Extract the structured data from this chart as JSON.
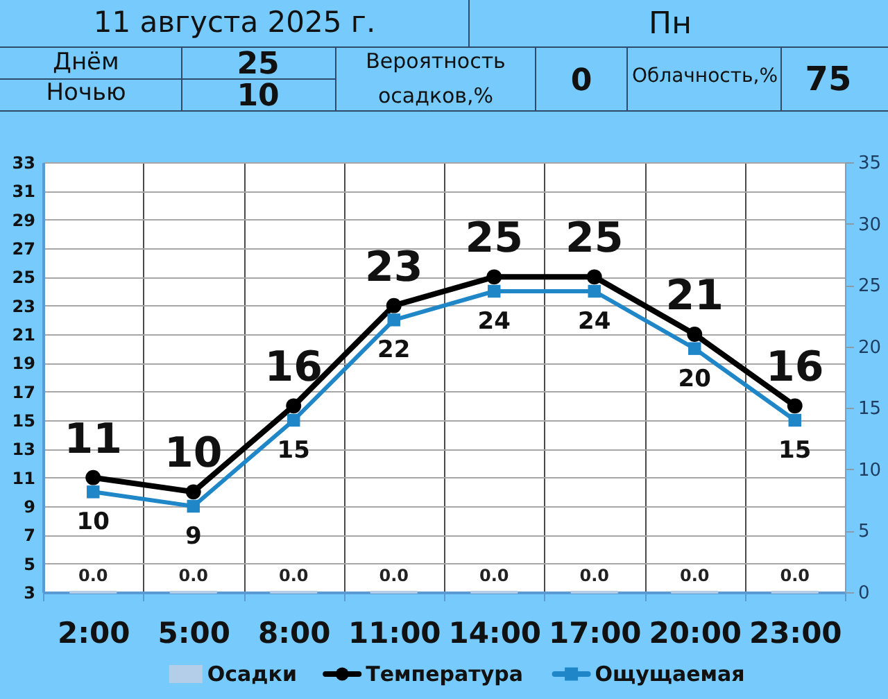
{
  "chart_data": {
    "type": "line",
    "title": "11 августа 2025 г.",
    "annotations": [
      "Пн",
      "Днём",
      "25",
      "Ночью",
      "10",
      "Вероятность осадков,%",
      "0",
      "Облачность,%",
      "75"
    ],
    "categories": [
      "2:00",
      "5:00",
      "8:00",
      "11:00",
      "14:00",
      "17:00",
      "20:00",
      "23:00"
    ],
    "series": [
      {
        "name": "Осадки",
        "type": "bar",
        "axis": "y2",
        "color": "#b4cde8",
        "values": [
          0,
          0,
          0,
          0,
          0,
          0,
          0,
          0
        ],
        "value_labels": [
          "0.0",
          "0.0",
          "0.0",
          "0.0",
          "0.0",
          "0.0",
          "0.0",
          "0.0"
        ]
      },
      {
        "name": "Температура",
        "marker": "circle",
        "color": "#000000",
        "values": [
          11,
          10,
          16,
          23,
          25,
          25,
          21,
          16
        ],
        "value_labels": [
          "11",
          "10",
          "16",
          "23",
          "25",
          "25",
          "21",
          "16"
        ]
      },
      {
        "name": "Ощущаемая",
        "marker": "square",
        "color": "#1f86c8",
        "values": [
          10,
          9,
          15,
          22,
          24,
          24,
          20,
          15
        ],
        "value_labels": [
          "10",
          "9",
          "15",
          "22",
          "24",
          "24",
          "20",
          "15"
        ]
      }
    ],
    "ylim": [
      3,
      33
    ],
    "yticks": [
      3,
      5,
      7,
      9,
      11,
      13,
      15,
      17,
      19,
      21,
      23,
      25,
      27,
      29,
      31,
      33
    ],
    "y2lim": [
      0,
      35
    ],
    "y2ticks": [
      0,
      5,
      10,
      15,
      20,
      25,
      30,
      35
    ],
    "grid": true,
    "legend": "bottom"
  }
}
